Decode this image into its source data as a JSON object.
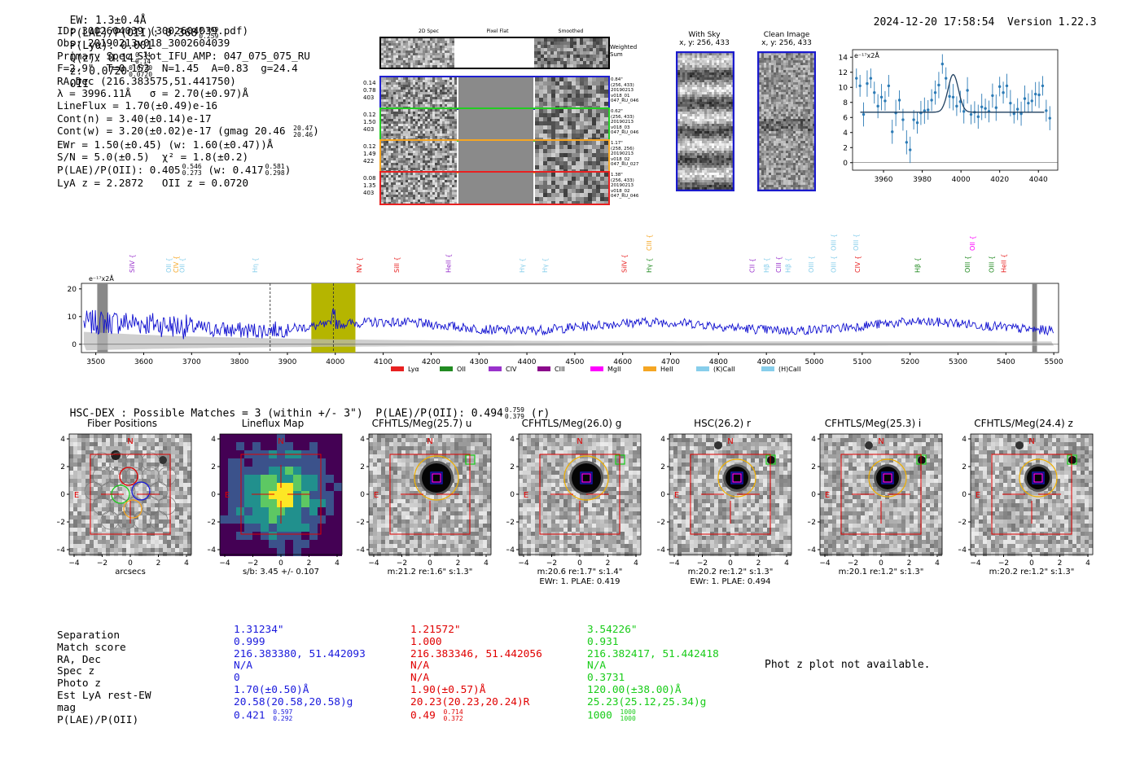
{
  "header": {
    "ew": "EW: 1.3±0.4Å",
    "plae_label": "P(LAE)/P(OII): 0.368",
    "plae_hi": "0.569",
    "plae_lo": "0.259",
    "plya": "P(Lyα): 0.001",
    "qz": "Q(z): 0.14",
    "qz_hi": "0.14",
    "qz_lo": "0.14",
    "z": "z: 0.0720",
    "z_hi": "0.0720",
    "z_lo": "0.0720",
    "z_line": "OII",
    "timestamp": "2024-12-20 17:58:54",
    "version": "Version 1.22.3"
  },
  "info": {
    "id": "ID: 3002604039 (3002604039.pdf)",
    "obs": "Obs: 20190213v018_3002604039",
    "primary": "Primary Spec_Slot_IFU_AMP: 047_075_075_RU",
    "params": "F=2.9\"  T=0.153  N=1.45  A=0.83  g=24.4",
    "radec": "RA,Dec (216.383575,51.441750)",
    "lambda": "λ = 3996.11Å   σ = 2.70(±0.97)Å",
    "lineflux": "LineFlux = 1.70(±0.49)e-16",
    "contn": "Cont(n) = 3.40(±0.14)e-17",
    "contw": "Cont(w) = 3.20(±0.02)e-17 (gmag 20.46",
    "contw_hi": "20.47",
    "contw_lo": "20.46",
    "ewr": "EWr = 1.50(±0.45) (w: 1.60(±0.47))Å",
    "sn": "S/N = 5.0(±0.5)  χ² = 1.8(±0.2)",
    "plae": "P(LAE)/P(OII): 0.405",
    "plae_hi": "0.546",
    "plae_lo": "0.273",
    "plae_w": "(w: 0.417",
    "plae_w_hi": "0.581",
    "plae_w_lo": "0.298",
    "lyaz": "LyA z = 2.2872   OII z = 0.0720"
  },
  "spec2d": {
    "col_titles": [
      "2D Spec",
      "Pixel Flat",
      "Smoothed"
    ],
    "weighted_sum": "Weighted Sum",
    "rows": [
      {
        "left": [
          "0.14",
          "0.78",
          "403"
        ],
        "right": [
          "0.84\"",
          "(256, 433)",
          "20190213",
          "v018_01",
          "047_RU_046"
        ],
        "color": "#1f1fd0"
      },
      {
        "left": [
          "0.12",
          "1.50",
          "403"
        ],
        "right": [
          "0.62\"",
          "(256, 433)",
          "20190213",
          "v018_03",
          "047_RU_046"
        ],
        "color": "#22cc22"
      },
      {
        "left": [
          "0.12",
          "1.49",
          "422"
        ],
        "right": [
          "1.17\"",
          "(258, 256)",
          "20190213",
          "v018_02",
          "047_RU_027"
        ],
        "color": "#f5a623"
      },
      {
        "left": [
          "0.08",
          "1.35",
          "403"
        ],
        "right": [
          "1.38\"",
          "(256, 433)",
          "20190213",
          "v018_02",
          "047_RU_046"
        ],
        "color": "#e82020"
      }
    ]
  },
  "cutouts": {
    "with_sky": "With Sky",
    "with_sky_xy": "x, y: 256, 433",
    "clean": "Clean Image",
    "clean_xy": "x, y: 256, 433"
  },
  "zoom_chart_data": {
    "type": "scatter",
    "ylabel": "e⁻¹⁷x2Å",
    "xlim": [
      3944,
      4050
    ],
    "ylim": [
      -1,
      15
    ],
    "xticks": [
      "3960",
      "3980",
      "4000",
      "4020",
      "4040"
    ],
    "yticks": [
      "0",
      "2",
      "4",
      "6",
      "8",
      "10",
      "12",
      "14"
    ],
    "fit_continuum": 6.7,
    "fit_peak": 11.7,
    "fit_center": 3996
  },
  "chart_data": {
    "type": "line",
    "title": "",
    "xlabel": "",
    "ylabel": "e⁻¹⁷x2Å",
    "xlim": [
      3470,
      5510
    ],
    "ylim": [
      -3,
      22
    ],
    "xticks": [
      "3500",
      "3600",
      "3700",
      "3800",
      "3900",
      "4000",
      "4100",
      "4200",
      "4300",
      "4400",
      "4500",
      "4600",
      "4700",
      "4800",
      "4900",
      "5000",
      "5100",
      "5200",
      "5300",
      "5400",
      "5500"
    ],
    "yticks": [
      "0",
      "10",
      "20"
    ],
    "highlight_range": [
      3950,
      4042
    ],
    "dashed_lines": [
      3864,
      3996
    ],
    "line_labels": [
      {
        "text": "SiIV",
        "x": 3575,
        "row": 1,
        "color": "#9932cc"
      },
      {
        "text": "OII",
        "x": 3652,
        "row": 1,
        "color": "#87ceeb"
      },
      {
        "text": "CIV",
        "x": 3667,
        "row": 1,
        "color": "#f5a623"
      },
      {
        "text": "OII",
        "x": 3680,
        "row": 1,
        "color": "#87ceeb"
      },
      {
        "text": "Hη",
        "x": 3832,
        "row": 1,
        "color": "#87ceeb"
      },
      {
        "text": "NV",
        "x": 4050,
        "row": 1,
        "color": "#e82020"
      },
      {
        "text": "SiII",
        "x": 4128,
        "row": 1,
        "color": "#e82020"
      },
      {
        "text": "HeII",
        "x": 4236,
        "row": 1,
        "color": "#9932cc"
      },
      {
        "text": "Hγ",
        "x": 4390,
        "row": 1,
        "color": "#87ceeb"
      },
      {
        "text": "Hγ",
        "x": 4437,
        "row": 1,
        "color": "#87ceeb"
      },
      {
        "text": "SiIV",
        "x": 4603,
        "row": 1,
        "color": "#e82020"
      },
      {
        "text": "CIII",
        "x": 4655,
        "row": 0,
        "color": "#f5a623"
      },
      {
        "text": "Hγ",
        "x": 4655,
        "row": 1,
        "color": "#228b22"
      },
      {
        "text": "CII",
        "x": 4870,
        "row": 1,
        "color": "#9932cc"
      },
      {
        "text": "Hβ",
        "x": 4900,
        "row": 1,
        "color": "#87ceeb"
      },
      {
        "text": "CIII",
        "x": 4925,
        "row": 1,
        "color": "#9932cc"
      },
      {
        "text": "Hβ",
        "x": 4945,
        "row": 1,
        "color": "#87ceeb"
      },
      {
        "text": "OIII",
        "x": 4993,
        "row": 1,
        "color": "#87ceeb"
      },
      {
        "text": "OIII",
        "x": 5040,
        "row": 0,
        "color": "#87ceeb"
      },
      {
        "text": "OIII",
        "x": 5040,
        "row": 1,
        "color": "#87ceeb"
      },
      {
        "text": "OIII",
        "x": 5087,
        "row": 0,
        "color": "#87ceeb"
      },
      {
        "text": "CIV",
        "x": 5090,
        "row": 1,
        "color": "#e82020"
      },
      {
        "text": "Hβ",
        "x": 5215,
        "row": 1,
        "color": "#228b22"
      },
      {
        "text": "OII",
        "x": 5330,
        "row": 0,
        "color": "#ff00ff"
      },
      {
        "text": "OIII",
        "x": 5320,
        "row": 1,
        "color": "#228b22"
      },
      {
        "text": "OIII",
        "x": 5370,
        "row": 1,
        "color": "#228b22"
      },
      {
        "text": "HeII",
        "x": 5395,
        "row": 1,
        "color": "#e82020"
      }
    ],
    "legend": [
      {
        "name": "Lyα",
        "color": "#e82020"
      },
      {
        "name": "OII",
        "color": "#228b22"
      },
      {
        "name": "CIV",
        "color": "#9932cc"
      },
      {
        "name": "CIII",
        "color": "#8b0a8b"
      },
      {
        "name": "MgII",
        "color": "#ff00ff"
      },
      {
        "name": "HeII",
        "color": "#f5a623"
      },
      {
        "name": "(K)CaII",
        "color": "#87ceeb"
      },
      {
        "name": "(H)CaII",
        "color": "#87ceeb"
      }
    ]
  },
  "hsc": {
    "title": "HSC-DEX : Possible Matches = 3 (within +/- 3\")  P(LAE)/P(OII): 0.494",
    "plae_hi": "0.759",
    "plae_lo": "0.379",
    "band": "(r)"
  },
  "panels": [
    {
      "title": "Fiber Positions",
      "sub1": "arcsecs",
      "sub2": ""
    },
    {
      "title": "Lineflux Map",
      "sub1": "s/b: 3.45 +/- 0.107",
      "sub2": ""
    },
    {
      "title": "CFHTLS/Meg(25.7) u",
      "sub1": "m:21.2  re:1.6\"  s:1.3\"",
      "sub2": ""
    },
    {
      "title": "CFHTLS/Meg(26.0) g",
      "sub1": "m:20.6  re:1.7\"  s:1.4\"",
      "sub2": "EWr: 1. PLAE: 0.419"
    },
    {
      "title": "HSC(26.2) r",
      "sub1": "m:20.2  re:1.2\"  s:1.3\"",
      "sub2": "EWr: 1. PLAE: 0.494"
    },
    {
      "title": "CFHTLS/Meg(25.3) i",
      "sub1": "m:20.1  re:1.2\"  s:1.3\"",
      "sub2": ""
    },
    {
      "title": "CFHTLS/Meg(24.4) z",
      "sub1": "m:20.2  re:1.2\"  s:1.3\"",
      "sub2": ""
    }
  ],
  "panel_axis": {
    "ticks": [
      "−4",
      "−2",
      "0",
      "2",
      "4"
    ],
    "north": "N",
    "east": "E"
  },
  "matches": {
    "labels": [
      "Separation",
      "Match score",
      "RA, Dec",
      "Spec z",
      "Photo z",
      "Est LyA rest-EW",
      "mag",
      "P(LAE)/P(OII)"
    ],
    "columns": [
      {
        "color": "#1a1adc",
        "values": [
          "1.31234\"",
          "0.999",
          "216.383380, 51.442093",
          "N/A",
          "0",
          "1.70(±0.50)Å",
          "20.58(20.58,20.58)g",
          "0.421"
        ],
        "hi": "0.597",
        "lo": "0.292"
      },
      {
        "color": "#e00000",
        "values": [
          "1.21572\"",
          "1.000",
          "216.383346, 51.442056",
          "N/A",
          "N/A",
          "1.90(±0.57)Å",
          "20.23(20.23,20.24)R",
          "0.49"
        ],
        "hi": "0.714",
        "lo": "0.372"
      },
      {
        "color": "#18cc18",
        "values": [
          "3.54226\"",
          "0.931",
          "216.382417, 51.442418",
          "N/A",
          "0.3731",
          "120.00(±38.00)Å",
          "25.23(25.12,25.34)g",
          "1000"
        ],
        "hi": "1000",
        "lo": "1000"
      }
    ],
    "phot_z_msg": "Phot z plot not available."
  }
}
